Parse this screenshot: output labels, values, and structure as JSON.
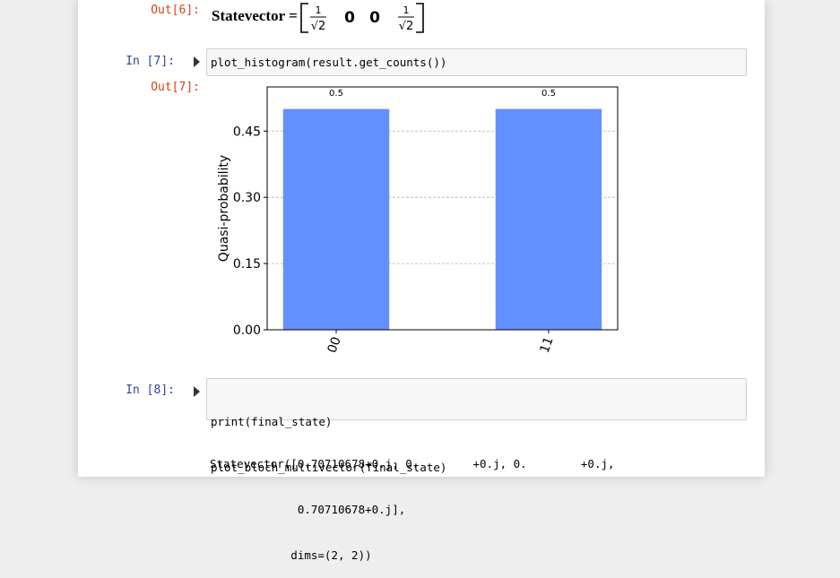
{
  "cells": [
    {
      "out_prompt": "Out[6]:",
      "math": {
        "lhs": "Statevector =",
        "entries": [
          {
            "num": "1",
            "den": "√2"
          },
          "0",
          "0",
          {
            "num": "1",
            "den": "√2"
          }
        ]
      }
    },
    {
      "in_prompt": "In [7]:",
      "code": [
        "plot_histogram(result.get_counts())"
      ],
      "out_prompt": "Out[7]:"
    },
    {
      "in_prompt": "In [8]:",
      "code": [
        "print(final_state)",
        "plot_bloch_multivector(final_state)"
      ],
      "stream": [
        "Statevector([0.70710678+0.j, 0.        +0.j, 0.        +0.j,",
        "             0.70710678+0.j],",
        "            dims=(2, 2))"
      ]
    }
  ],
  "chart_data": {
    "type": "bar",
    "ylabel": "Quasi-probability",
    "categories": [
      "00",
      "11"
    ],
    "values": [
      0.5,
      0.5
    ],
    "color": "#648fff",
    "ylim": [
      0,
      0.55
    ],
    "yticks": [
      {
        "value": 0,
        "label": "0.00"
      },
      {
        "value": 0.15,
        "label": "0.15"
      },
      {
        "value": 0.3,
        "label": "0.30"
      },
      {
        "value": 0.45,
        "label": "0.45"
      }
    ],
    "grid": true
  }
}
